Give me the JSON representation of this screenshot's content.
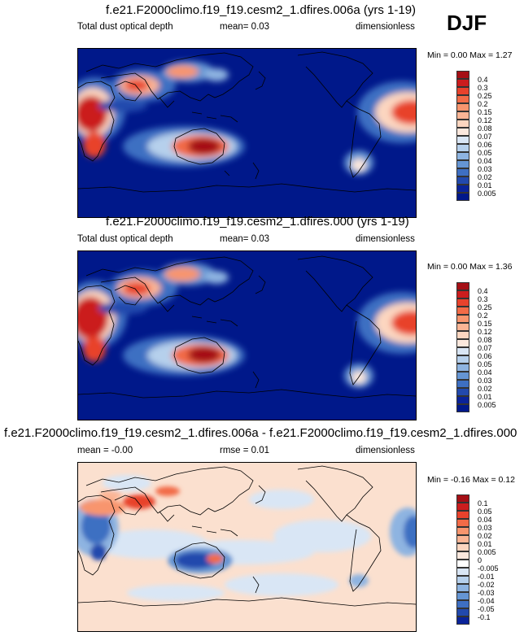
{
  "season": "DJF",
  "panels": [
    {
      "title": "f.e21.F2000climo.f19_f19.cesm2_1.dfires.006a (yrs 1-19)",
      "left_label": "Total dust optical depth",
      "stat_label": "mean=  0.03",
      "units": "dimensionless",
      "minmax": "Min =  0.00 Max =  1.27",
      "colorbar_labels": [
        "0.4",
        "0.3",
        "0.25",
        "0.2",
        "0.15",
        "0.12",
        "0.08",
        "0.07",
        "0.06",
        "0.05",
        "0.04",
        "0.03",
        "0.02",
        "0.01",
        "0.005"
      ],
      "colorbar_colors": [
        "#a50f15",
        "#cb1d1e",
        "#e8422c",
        "#f26b47",
        "#f8956e",
        "#fbb595",
        "#fcd6c0",
        "#fbe8dd",
        "#d9e6f5",
        "#b6d0ec",
        "#8eb4e1",
        "#6595d3",
        "#3e6fc2",
        "#2249ad",
        "#0a2399",
        "#00188a"
      ]
    },
    {
      "title": "f.e21.F2000climo.f19_f19.cesm2_1.dfires.000 (yrs 1-19)",
      "left_label": "Total dust optical depth",
      "stat_label": "mean=  0.03",
      "units": "dimensionless",
      "minmax": "Min =  0.00 Max =  1.36",
      "colorbar_labels": [
        "0.4",
        "0.3",
        "0.25",
        "0.2",
        "0.15",
        "0.12",
        "0.08",
        "0.07",
        "0.06",
        "0.05",
        "0.04",
        "0.03",
        "0.02",
        "0.01",
        "0.005"
      ],
      "colorbar_colors": [
        "#a50f15",
        "#cb1d1e",
        "#e8422c",
        "#f26b47",
        "#f8956e",
        "#fbb595",
        "#fcd6c0",
        "#fbe8dd",
        "#d9e6f5",
        "#b6d0ec",
        "#8eb4e1",
        "#6595d3",
        "#3e6fc2",
        "#2249ad",
        "#0a2399",
        "#00188a"
      ]
    },
    {
      "title": "f.e21.F2000climo.f19_f19.cesm2_1.dfires.006a - f.e21.F2000climo.f19_f19.cesm2_1.dfires.000",
      "left_label": "mean = -0.00",
      "stat_label": "rmse =  0.01",
      "units": "dimensionless",
      "minmax": "Min = -0.16 Max =  0.12",
      "colorbar_labels": [
        "0.1",
        "0.05",
        "0.04",
        "0.03",
        "0.02",
        "0.01",
        "0.005",
        "0",
        "-0.005",
        "-0.01",
        "-0.02",
        "-0.03",
        "-0.04",
        "-0.05",
        "-0.1"
      ],
      "colorbar_colors": [
        "#a50f15",
        "#cb1d1e",
        "#e8422c",
        "#f26b47",
        "#f8956e",
        "#fbb595",
        "#fcd6c0",
        "#fbe8dd",
        "#ffffff",
        "#d9e6f5",
        "#b6d0ec",
        "#8eb4e1",
        "#6595d3",
        "#3e6fc2",
        "#2249ad",
        "#0a2399"
      ]
    }
  ],
  "chart_data": [
    {
      "type": "heatmap",
      "title": "f.e21.F2000climo.f19_f19.cesm2_1.dfires.006a (yrs 1-19)",
      "variable": "Total dust optical depth",
      "mean": 0.03,
      "min": 0.0,
      "max": 1.27,
      "units": "dimensionless",
      "contour_levels": [
        0.005,
        0.01,
        0.02,
        0.03,
        0.04,
        0.05,
        0.06,
        0.07,
        0.08,
        0.12,
        0.15,
        0.2,
        0.25,
        0.3,
        0.4
      ]
    },
    {
      "type": "heatmap",
      "title": "f.e21.F2000climo.f19_f19.cesm2_1.dfires.000 (yrs 1-19)",
      "variable": "Total dust optical depth",
      "mean": 0.03,
      "min": 0.0,
      "max": 1.36,
      "units": "dimensionless",
      "contour_levels": [
        0.005,
        0.01,
        0.02,
        0.03,
        0.04,
        0.05,
        0.06,
        0.07,
        0.08,
        0.12,
        0.15,
        0.2,
        0.25,
        0.3,
        0.4
      ]
    },
    {
      "type": "heatmap",
      "title": "f.e21.F2000climo.f19_f19.cesm2_1.dfires.006a - f.e21.F2000climo.f19_f19.cesm2_1.dfires.000",
      "mean": -0.0,
      "rmse": 0.01,
      "min": -0.16,
      "max": 0.12,
      "units": "dimensionless",
      "contour_levels": [
        -0.1,
        -0.05,
        -0.04,
        -0.03,
        -0.02,
        -0.01,
        -0.005,
        0,
        0.005,
        0.01,
        0.02,
        0.03,
        0.04,
        0.05,
        0.1
      ]
    }
  ]
}
